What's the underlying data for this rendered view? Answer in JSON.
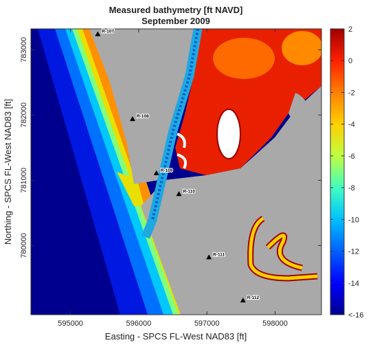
{
  "chart_data": {
    "type": "map",
    "title": [
      "Measured bathymetry [ft NAVD]",
      "September 2009"
    ],
    "xlabel": "Easting - SPCS FL-West NAD83 [ft]",
    "ylabel": "Northing - SPCS FL-West NAD83 [ft]",
    "xlim": [
      594420,
      598680
    ],
    "ylim": [
      778940,
      783320
    ],
    "xticks": [
      595000,
      596000,
      597000,
      598000
    ],
    "yticks": [
      780000,
      781000,
      782000,
      783000
    ],
    "stations": [
      {
        "label": "R-107",
        "x": 595400,
        "y": 783240
      },
      {
        "label": "R-108",
        "x": 595910,
        "y": 781940
      },
      {
        "label": "R-109",
        "x": 596260,
        "y": 781110
      },
      {
        "label": "R-110",
        "x": 596590,
        "y": 780790
      },
      {
        "label": "R-111",
        "x": 597030,
        "y": 779820
      },
      {
        "label": "R-112",
        "x": 597530,
        "y": 779160
      }
    ],
    "colorbar": {
      "clim": [
        -16,
        2
      ],
      "ticks": [
        2,
        0,
        -2,
        -4,
        -6,
        -8,
        -10,
        -12,
        -14,
        {
          "value": -16,
          "label": "<-16"
        }
      ],
      "colormap": [
        "#00008f",
        "#0000ff",
        "#0060ff",
        "#00c0ff",
        "#40ffc0",
        "#c0ff40",
        "#ffd000",
        "#ff8000",
        "#ff2000",
        "#a00000"
      ]
    }
  }
}
